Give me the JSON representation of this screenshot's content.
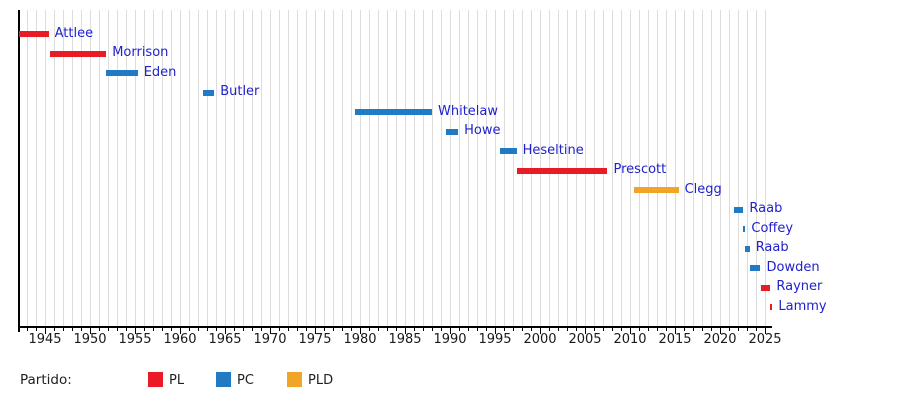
{
  "chart_data": {
    "type": "bar",
    "subtype": "gantt-timeline",
    "title": "",
    "x_axis": {
      "min": 1942.1,
      "max": 2025.8,
      "minor_tick_interval_years": 1,
      "major_tick_interval_years": 5,
      "major_tick_labels": [
        "1945",
        "1950",
        "1955",
        "1960",
        "1965",
        "1970",
        "1975",
        "1980",
        "1985",
        "1990",
        "1995",
        "2000",
        "2005",
        "2010",
        "2015",
        "2020",
        "2025"
      ],
      "grid": true
    },
    "rows": [
      {
        "label": "Attlee",
        "party": "PL",
        "start": 1942.1,
        "end": 1945.4
      },
      {
        "label": "Morrison",
        "party": "PL",
        "start": 1945.6,
        "end": 1951.8
      },
      {
        "label": "Eden",
        "party": "PC",
        "start": 1951.8,
        "end": 1955.3
      },
      {
        "label": "Butler",
        "party": "PC",
        "start": 1962.6,
        "end": 1963.8
      },
      {
        "label": "Whitelaw",
        "party": "PC",
        "start": 1979.4,
        "end": 1988.0
      },
      {
        "label": "Howe",
        "party": "PC",
        "start": 1989.6,
        "end": 1990.9
      },
      {
        "label": "Heseltine",
        "party": "PC",
        "start": 1995.5,
        "end": 1997.4
      },
      {
        "label": "Prescott",
        "party": "PL",
        "start": 1997.4,
        "end": 2007.5
      },
      {
        "label": "Clegg",
        "party": "PLD",
        "start": 2010.4,
        "end": 2015.4
      },
      {
        "label": "Raab",
        "party": "PC",
        "start": 2021.6,
        "end": 2022.6
      },
      {
        "label": "Coffey",
        "party": "PC",
        "start": 2022.6,
        "end": 2022.75
      },
      {
        "label": "Raab",
        "party": "PC",
        "start": 2022.75,
        "end": 2023.3
      },
      {
        "label": "Dowden",
        "party": "PC",
        "start": 2023.3,
        "end": 2024.5
      },
      {
        "label": "Rayner",
        "party": "PL",
        "start": 2024.5,
        "end": 2025.6
      },
      {
        "label": "Lammy",
        "party": "PL",
        "start": 2025.6,
        "end": 2025.8
      }
    ],
    "parties": {
      "PL": "#e81c26",
      "PC": "#217ac4",
      "PLD": "#f0a428"
    },
    "legend": {
      "title": "Partido:",
      "position": "bottom",
      "items": [
        {
          "label": "PL",
          "party": "PL"
        },
        {
          "label": "PC",
          "party": "PC"
        },
        {
          "label": "PLD",
          "party": "PLD"
        }
      ]
    }
  },
  "colors": {
    "background": "#ffffff",
    "grid": "#dcdcdc",
    "axis": "#000000",
    "tick_text": "#1a1a1a",
    "label_link": "#2121cc"
  }
}
